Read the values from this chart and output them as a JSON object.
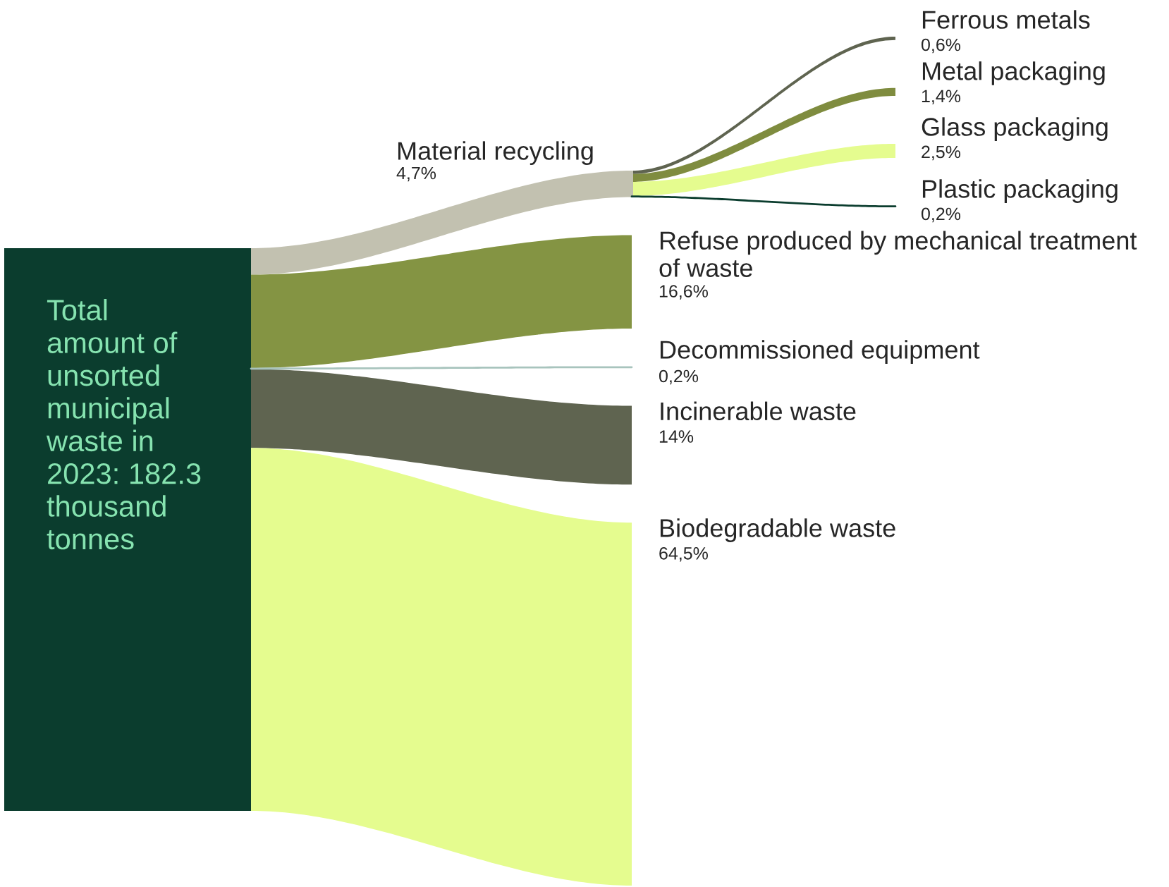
{
  "chart_data": {
    "type": "other",
    "title": "Total\namount of\nunsorted\nmunicipal\nwaste in\n2023: 182.3\nthousand\ntonnes",
    "categories": [
      "Material recycling",
      "Ferrous metals",
      "Metal packaging",
      "Glass packaging",
      "Plastic packaging",
      "Refuse produced by mechanical treatment\nof waste",
      "Decommissioned equipment",
      "Incinerable waste",
      "Biodegradable waste"
    ],
    "values": [
      4.7,
      0.6,
      1.4,
      2.5,
      0.2,
      16.6,
      0.2,
      14,
      64.5
    ],
    "value_labels": [
      "4,7%",
      "0,6%",
      "1,4%",
      "2,5%",
      "0,2%",
      "16,6%",
      "0,2%",
      "14%",
      "64,5%"
    ],
    "colors": [
      "#c2c1b0",
      "#5f6450",
      "#7f8c3f",
      "#e5fc8f",
      "#0b3d2e",
      "#849443",
      "#a8c4bd",
      "#5f6450",
      "#e5fc8f"
    ],
    "legend": false
  }
}
